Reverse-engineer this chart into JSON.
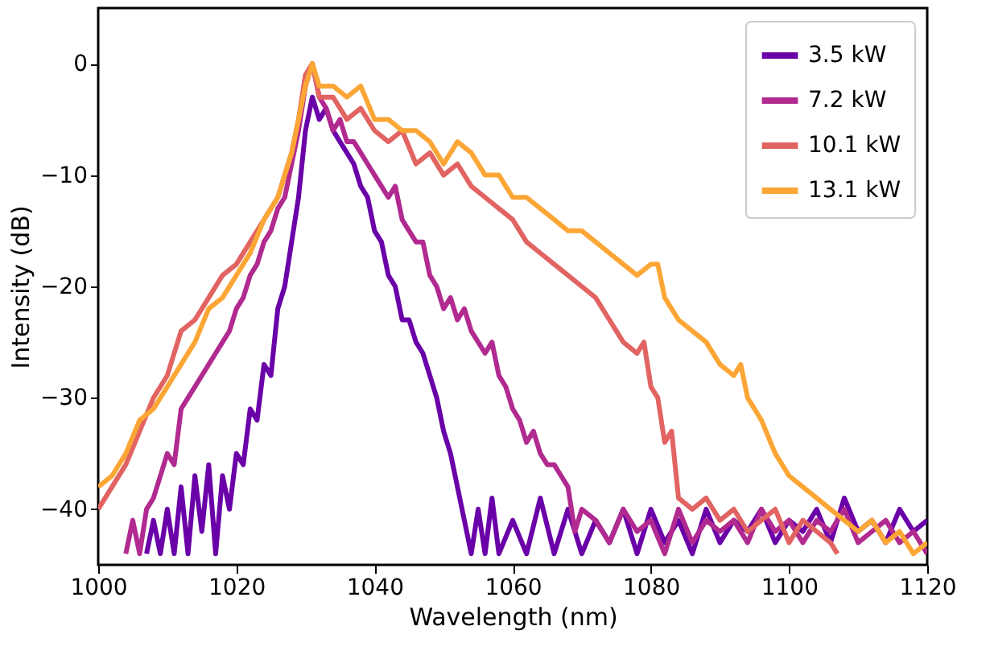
{
  "chart_data": {
    "type": "line",
    "xlabel": "Wavelength (nm)",
    "ylabel": "Intensity (dB)",
    "xlim": [
      1000,
      1120
    ],
    "xticks": [
      1000,
      1020,
      1040,
      1060,
      1080,
      1100,
      1120
    ],
    "ylim": [
      -45,
      5
    ],
    "yticks": [
      -40,
      -30,
      -20,
      -10,
      0
    ],
    "grid": false,
    "legend": "top right",
    "line_style": "solid",
    "marker": "none",
    "series": [
      {
        "name": "3.5 kW",
        "color": "#6a00a8",
        "x": [
          1007,
          1008,
          1009,
          1010,
          1011,
          1012,
          1013,
          1014,
          1015,
          1016,
          1017,
          1018,
          1019,
          1020,
          1021,
          1022,
          1023,
          1024,
          1025,
          1026,
          1027,
          1028,
          1029,
          1030,
          1031,
          1032,
          1033,
          1034,
          1035,
          1036,
          1037,
          1038,
          1039,
          1040,
          1041,
          1042,
          1043,
          1044,
          1045,
          1046,
          1047,
          1048,
          1049,
          1050,
          1051,
          1052,
          1053,
          1054,
          1055,
          1056,
          1057,
          1058,
          1060,
          1062,
          1064,
          1066,
          1068,
          1070,
          1072,
          1074,
          1076,
          1078,
          1080,
          1082,
          1084,
          1086,
          1088,
          1090,
          1092,
          1094,
          1096,
          1098,
          1100,
          1102,
          1104,
          1106,
          1108,
          1110,
          1112,
          1114,
          1116,
          1118,
          1120
        ],
        "values": [
          -44,
          -41,
          -44,
          -40,
          -44,
          -38,
          -44,
          -37,
          -42,
          -36,
          -44,
          -37,
          -40,
          -35,
          -36,
          -31,
          -32,
          -27,
          -28,
          -22,
          -20,
          -16,
          -12,
          -6,
          -3,
          -5,
          -4,
          -6,
          -7,
          -8,
          -9,
          -11,
          -12,
          -15,
          -16,
          -19,
          -20,
          -23,
          -23,
          -25,
          -26,
          -28,
          -30,
          -33,
          -35,
          -38,
          -41,
          -44,
          -40,
          -44,
          -39,
          -44,
          -41,
          -44,
          -39,
          -44,
          -40,
          -44,
          -41,
          -43,
          -40,
          -44,
          -40,
          -43,
          -41,
          -44,
          -40,
          -43,
          -41,
          -42,
          -40,
          -43,
          -41,
          -42,
          -40,
          -43,
          -39,
          -42,
          -41,
          -43,
          -40,
          -42,
          -41
        ]
      },
      {
        "name": "7.2 kW",
        "color": "#b12a90",
        "x": [
          1004,
          1005,
          1006,
          1007,
          1008,
          1009,
          1010,
          1011,
          1012,
          1013,
          1014,
          1015,
          1016,
          1017,
          1018,
          1019,
          1020,
          1021,
          1022,
          1023,
          1024,
          1025,
          1026,
          1027,
          1028,
          1029,
          1030,
          1031,
          1032,
          1033,
          1034,
          1035,
          1036,
          1037,
          1038,
          1039,
          1040,
          1041,
          1042,
          1043,
          1044,
          1045,
          1046,
          1047,
          1048,
          1049,
          1050,
          1051,
          1052,
          1053,
          1054,
          1055,
          1056,
          1057,
          1058,
          1059,
          1060,
          1061,
          1062,
          1063,
          1064,
          1065,
          1066,
          1067,
          1068,
          1069,
          1070,
          1072,
          1074,
          1076,
          1078,
          1080,
          1082,
          1084,
          1086,
          1088,
          1090,
          1092,
          1094,
          1096,
          1098,
          1100,
          1102,
          1104,
          1106,
          1108,
          1110,
          1112,
          1114,
          1116,
          1118,
          1120
        ],
        "values": [
          -44,
          -41,
          -44,
          -40,
          -39,
          -37,
          -35,
          -36,
          -31,
          -30,
          -29,
          -28,
          -27,
          -26,
          -25,
          -24,
          -22,
          -21,
          -19,
          -18,
          -16,
          -15,
          -13,
          -12,
          -9,
          -6,
          -2,
          0,
          -3,
          -4,
          -6,
          -5,
          -7,
          -7,
          -8,
          -9,
          -10,
          -11,
          -12,
          -11,
          -14,
          -15,
          -16,
          -16,
          -19,
          -20,
          -22,
          -21,
          -23,
          -22,
          -24,
          -25,
          -26,
          -25,
          -28,
          -29,
          -31,
          -32,
          -34,
          -33,
          -35,
          -36,
          -36,
          -37,
          -38,
          -42,
          -40,
          -41,
          -43,
          -40,
          -42,
          -41,
          -44,
          -40,
          -43,
          -41,
          -42,
          -41,
          -43,
          -40,
          -42,
          -41,
          -43,
          -41,
          -42,
          -40,
          -43,
          -42,
          -41,
          -43,
          -42,
          -44
        ]
      },
      {
        "name": "10.1 kW",
        "color": "#e16462",
        "x": [
          1000,
          1002,
          1004,
          1006,
          1008,
          1010,
          1012,
          1014,
          1016,
          1018,
          1020,
          1022,
          1024,
          1026,
          1028,
          1029,
          1030,
          1031,
          1032,
          1034,
          1036,
          1038,
          1040,
          1042,
          1044,
          1046,
          1048,
          1050,
          1052,
          1054,
          1056,
          1058,
          1060,
          1062,
          1064,
          1066,
          1068,
          1070,
          1072,
          1074,
          1076,
          1078,
          1079,
          1080,
          1081,
          1082,
          1083,
          1084,
          1086,
          1088,
          1090,
          1092,
          1094,
          1096,
          1098,
          1100,
          1102,
          1104,
          1106,
          1107
        ],
        "values": [
          -40,
          -38,
          -36,
          -33,
          -30,
          -28,
          -24,
          -23,
          -21,
          -19,
          -18,
          -16,
          -14,
          -12,
          -8,
          -5,
          -1,
          0,
          -3,
          -3,
          -5,
          -4,
          -6,
          -7,
          -6,
          -9,
          -8,
          -10,
          -9,
          -11,
          -12,
          -13,
          -14,
          -16,
          -17,
          -18,
          -19,
          -20,
          -21,
          -23,
          -25,
          -26,
          -25,
          -29,
          -30,
          -34,
          -33,
          -39,
          -40,
          -39,
          -41,
          -40,
          -42,
          -41,
          -40,
          -43,
          -41,
          -42,
          -43,
          -44
        ]
      },
      {
        "name": "13.1 kW",
        "color": "#fca636",
        "x": [
          1000,
          1002,
          1004,
          1006,
          1008,
          1010,
          1012,
          1014,
          1016,
          1018,
          1020,
          1022,
          1024,
          1026,
          1028,
          1029,
          1030,
          1031,
          1032,
          1034,
          1036,
          1038,
          1040,
          1042,
          1044,
          1046,
          1048,
          1050,
          1052,
          1054,
          1056,
          1058,
          1060,
          1062,
          1064,
          1066,
          1068,
          1070,
          1072,
          1074,
          1076,
          1078,
          1080,
          1081,
          1082,
          1084,
          1086,
          1088,
          1090,
          1092,
          1093,
          1094,
          1096,
          1098,
          1100,
          1102,
          1104,
          1106,
          1108,
          1110,
          1112,
          1114,
          1116,
          1118,
          1120
        ],
        "values": [
          -38,
          -37,
          -35,
          -32,
          -31,
          -29,
          -27,
          -25,
          -22,
          -21,
          -19,
          -17,
          -14,
          -12,
          -8,
          -5,
          -2,
          0,
          -2,
          -2,
          -3,
          -2,
          -5,
          -5,
          -6,
          -6,
          -7,
          -9,
          -7,
          -8,
          -10,
          -10,
          -12,
          -12,
          -13,
          -14,
          -15,
          -15,
          -16,
          -17,
          -18,
          -19,
          -18,
          -18,
          -21,
          -23,
          -24,
          -25,
          -27,
          -28,
          -27,
          -30,
          -32,
          -35,
          -37,
          -38,
          -39,
          -40,
          -41,
          -42,
          -41,
          -43,
          -42,
          -44,
          -43
        ]
      }
    ]
  }
}
